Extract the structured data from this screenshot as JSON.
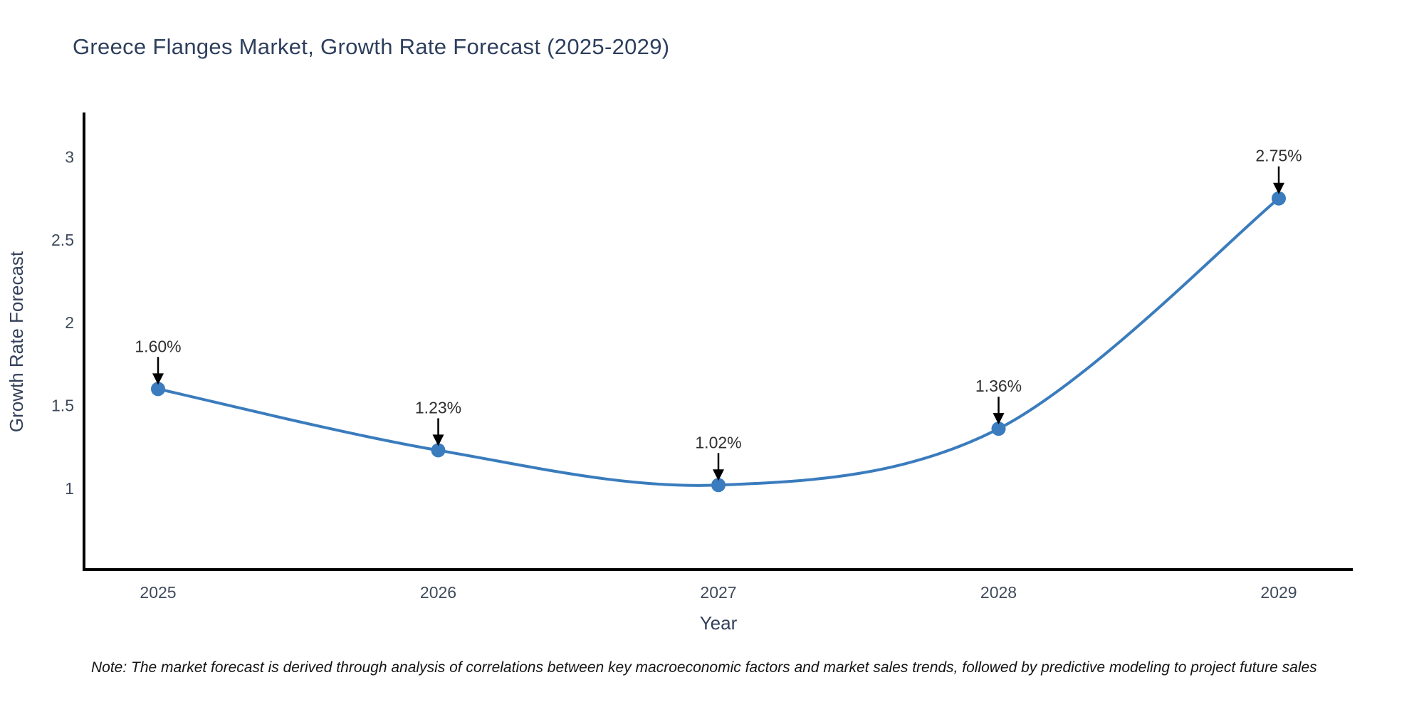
{
  "header": {
    "title": "Greece Flanges Market, Growth Rate Forecast (2025-2029)"
  },
  "chart_data": {
    "type": "line",
    "title": "Greece Flanges Market, Growth Rate Forecast (2025-2029)",
    "xlabel": "Year",
    "ylabel": "Growth Rate Forecast",
    "categories": [
      "2025",
      "2026",
      "2027",
      "2028",
      "2029"
    ],
    "values": [
      1.6,
      1.23,
      1.02,
      1.36,
      2.75
    ],
    "point_labels": [
      "1.60%",
      "1.23%",
      "1.02%",
      "1.36%",
      "2.75%"
    ],
    "yticks": [
      1,
      1.5,
      2,
      2.5,
      3
    ],
    "ytick_labels": [
      "1",
      "1.5",
      "2",
      "2.5",
      "3"
    ],
    "ylim": [
      0.51,
      3.26
    ],
    "line_shape": "spline",
    "grid": false,
    "legend_position": "none",
    "line_color": "#3a7cbd",
    "marker_color": "#3a7cbd",
    "axis_color": "#000000",
    "tick_color": "#3e4a5b",
    "axis_label_color": "#33405a",
    "annotation_text_color": "#2f2f2f",
    "annotation_arrow_color": "#000000"
  },
  "footnote": {
    "text": "Note: The market forecast is derived through analysis of correlations between key macroeconomic factors and market sales trends, followed by predictive modeling to project future sales"
  }
}
